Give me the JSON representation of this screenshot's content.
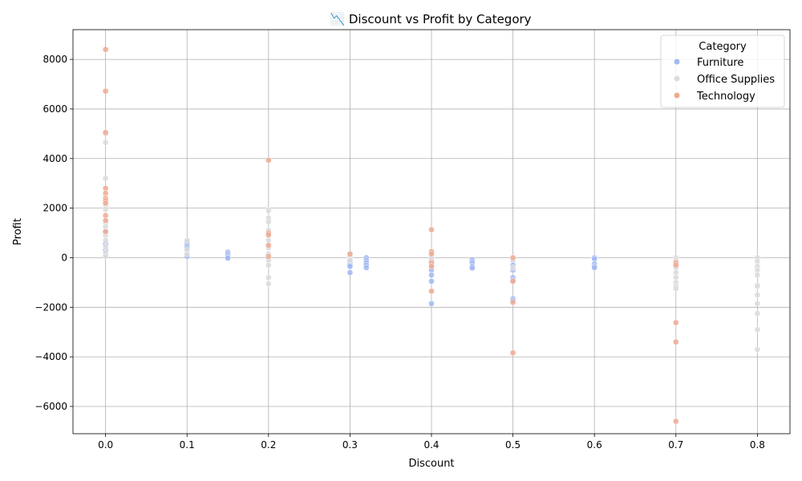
{
  "chart_data": {
    "type": "scatter",
    "title": "📉 Discount vs Profit by Category",
    "xlabel": "Discount",
    "ylabel": "Profit",
    "xlim": [
      -0.04,
      0.84
    ],
    "ylim": [
      -7100,
      9200
    ],
    "xticks": [
      0.0,
      0.1,
      0.2,
      0.3,
      0.4,
      0.5,
      0.6,
      0.7,
      0.8
    ],
    "xtick_labels": [
      "0.0",
      "0.1",
      "0.2",
      "0.3",
      "0.4",
      "0.5",
      "0.6",
      "0.7",
      "0.8"
    ],
    "yticks": [
      -6000,
      -4000,
      -2000,
      0,
      2000,
      4000,
      6000,
      8000
    ],
    "ytick_labels": [
      "−6000",
      "−4000",
      "−2000",
      "0",
      "2000",
      "4000",
      "6000",
      "8000"
    ],
    "grid": true,
    "legend": {
      "title": "Category",
      "placement": "top-right"
    },
    "series": [
      {
        "name": "Furniture",
        "color": "#a2b9f2",
        "points": [
          [
            0.0,
            1050
          ],
          [
            0.0,
            600
          ],
          [
            0.0,
            550
          ],
          [
            0.0,
            300
          ],
          [
            0.0,
            100
          ],
          [
            0.1,
            620
          ],
          [
            0.1,
            500
          ],
          [
            0.1,
            420
          ],
          [
            0.1,
            350
          ],
          [
            0.1,
            100
          ],
          [
            0.1,
            50
          ],
          [
            0.15,
            230
          ],
          [
            0.15,
            180
          ],
          [
            0.15,
            100
          ],
          [
            0.15,
            30
          ],
          [
            0.15,
            -20
          ],
          [
            0.3,
            100
          ],
          [
            0.3,
            0
          ],
          [
            0.3,
            -80
          ],
          [
            0.3,
            -180
          ],
          [
            0.3,
            -300
          ],
          [
            0.3,
            -350
          ],
          [
            0.3,
            -600
          ],
          [
            0.32,
            0
          ],
          [
            0.32,
            -100
          ],
          [
            0.32,
            -200
          ],
          [
            0.32,
            -300
          ],
          [
            0.32,
            -400
          ],
          [
            0.4,
            -100
          ],
          [
            0.4,
            -300
          ],
          [
            0.4,
            -500
          ],
          [
            0.4,
            -700
          ],
          [
            0.4,
            -950
          ],
          [
            0.4,
            -1850
          ],
          [
            0.45,
            -80
          ],
          [
            0.45,
            -200
          ],
          [
            0.45,
            -350
          ],
          [
            0.45,
            -420
          ],
          [
            0.5,
            -100
          ],
          [
            0.5,
            -300
          ],
          [
            0.5,
            -500
          ],
          [
            0.5,
            -800
          ],
          [
            0.5,
            -900
          ],
          [
            0.5,
            -1650
          ],
          [
            0.5,
            -1720
          ],
          [
            0.6,
            0
          ],
          [
            0.6,
            -50
          ],
          [
            0.6,
            -250
          ],
          [
            0.6,
            -350
          ],
          [
            0.6,
            -400
          ]
        ]
      },
      {
        "name": "Office Supplies",
        "color": "#dcdcdc",
        "points": [
          [
            0.0,
            5000
          ],
          [
            0.0,
            4650
          ],
          [
            0.0,
            3200
          ],
          [
            0.0,
            2100
          ],
          [
            0.0,
            1950
          ],
          [
            0.0,
            1400
          ],
          [
            0.0,
            1250
          ],
          [
            0.0,
            900
          ],
          [
            0.0,
            700
          ],
          [
            0.0,
            450
          ],
          [
            0.0,
            200
          ],
          [
            0.0,
            50
          ],
          [
            0.1,
            700
          ],
          [
            0.1,
            300
          ],
          [
            0.1,
            150
          ],
          [
            0.2,
            1900
          ],
          [
            0.2,
            1600
          ],
          [
            0.2,
            1450
          ],
          [
            0.2,
            1100
          ],
          [
            0.2,
            700
          ],
          [
            0.2,
            400
          ],
          [
            0.2,
            150
          ],
          [
            0.2,
            -100
          ],
          [
            0.2,
            -300
          ],
          [
            0.2,
            -800
          ],
          [
            0.2,
            -1050
          ],
          [
            0.3,
            50
          ],
          [
            0.3,
            -100
          ],
          [
            0.4,
            0
          ],
          [
            0.4,
            -200
          ],
          [
            0.5,
            -50
          ],
          [
            0.5,
            -400
          ],
          [
            0.7,
            0
          ],
          [
            0.7,
            -100
          ],
          [
            0.7,
            -250
          ],
          [
            0.7,
            -400
          ],
          [
            0.7,
            -600
          ],
          [
            0.7,
            -800
          ],
          [
            0.7,
            -1000
          ],
          [
            0.7,
            -1150
          ],
          [
            0.7,
            -1250
          ],
          [
            0.8,
            0
          ],
          [
            0.8,
            -150
          ],
          [
            0.8,
            -350
          ],
          [
            0.8,
            -500
          ],
          [
            0.8,
            -700
          ],
          [
            0.8,
            -1100
          ],
          [
            0.8,
            -1150
          ],
          [
            0.8,
            -1500
          ],
          [
            0.8,
            -1850
          ],
          [
            0.8,
            -2250
          ],
          [
            0.8,
            -2900
          ],
          [
            0.8,
            -3700
          ]
        ]
      },
      {
        "name": "Technology",
        "color": "#eeaa93",
        "points": [
          [
            0.0,
            8400
          ],
          [
            0.0,
            6720
          ],
          [
            0.0,
            5050
          ],
          [
            0.0,
            2800
          ],
          [
            0.0,
            2600
          ],
          [
            0.0,
            2400
          ],
          [
            0.0,
            2300
          ],
          [
            0.0,
            2200
          ],
          [
            0.0,
            1700
          ],
          [
            0.0,
            1500
          ],
          [
            0.0,
            1050
          ],
          [
            0.2,
            3930
          ],
          [
            0.2,
            1000
          ],
          [
            0.2,
            920
          ],
          [
            0.2,
            500
          ],
          [
            0.2,
            50
          ],
          [
            0.3,
            150
          ],
          [
            0.4,
            1130
          ],
          [
            0.4,
            250
          ],
          [
            0.4,
            150
          ],
          [
            0.4,
            -200
          ],
          [
            0.4,
            -350
          ],
          [
            0.4,
            -1350
          ],
          [
            0.5,
            0
          ],
          [
            0.5,
            -950
          ],
          [
            0.5,
            -1800
          ],
          [
            0.5,
            -3840
          ],
          [
            0.7,
            -200
          ],
          [
            0.7,
            -300
          ],
          [
            0.7,
            -2620
          ],
          [
            0.7,
            -3400
          ],
          [
            0.7,
            -6600
          ]
        ]
      }
    ]
  }
}
